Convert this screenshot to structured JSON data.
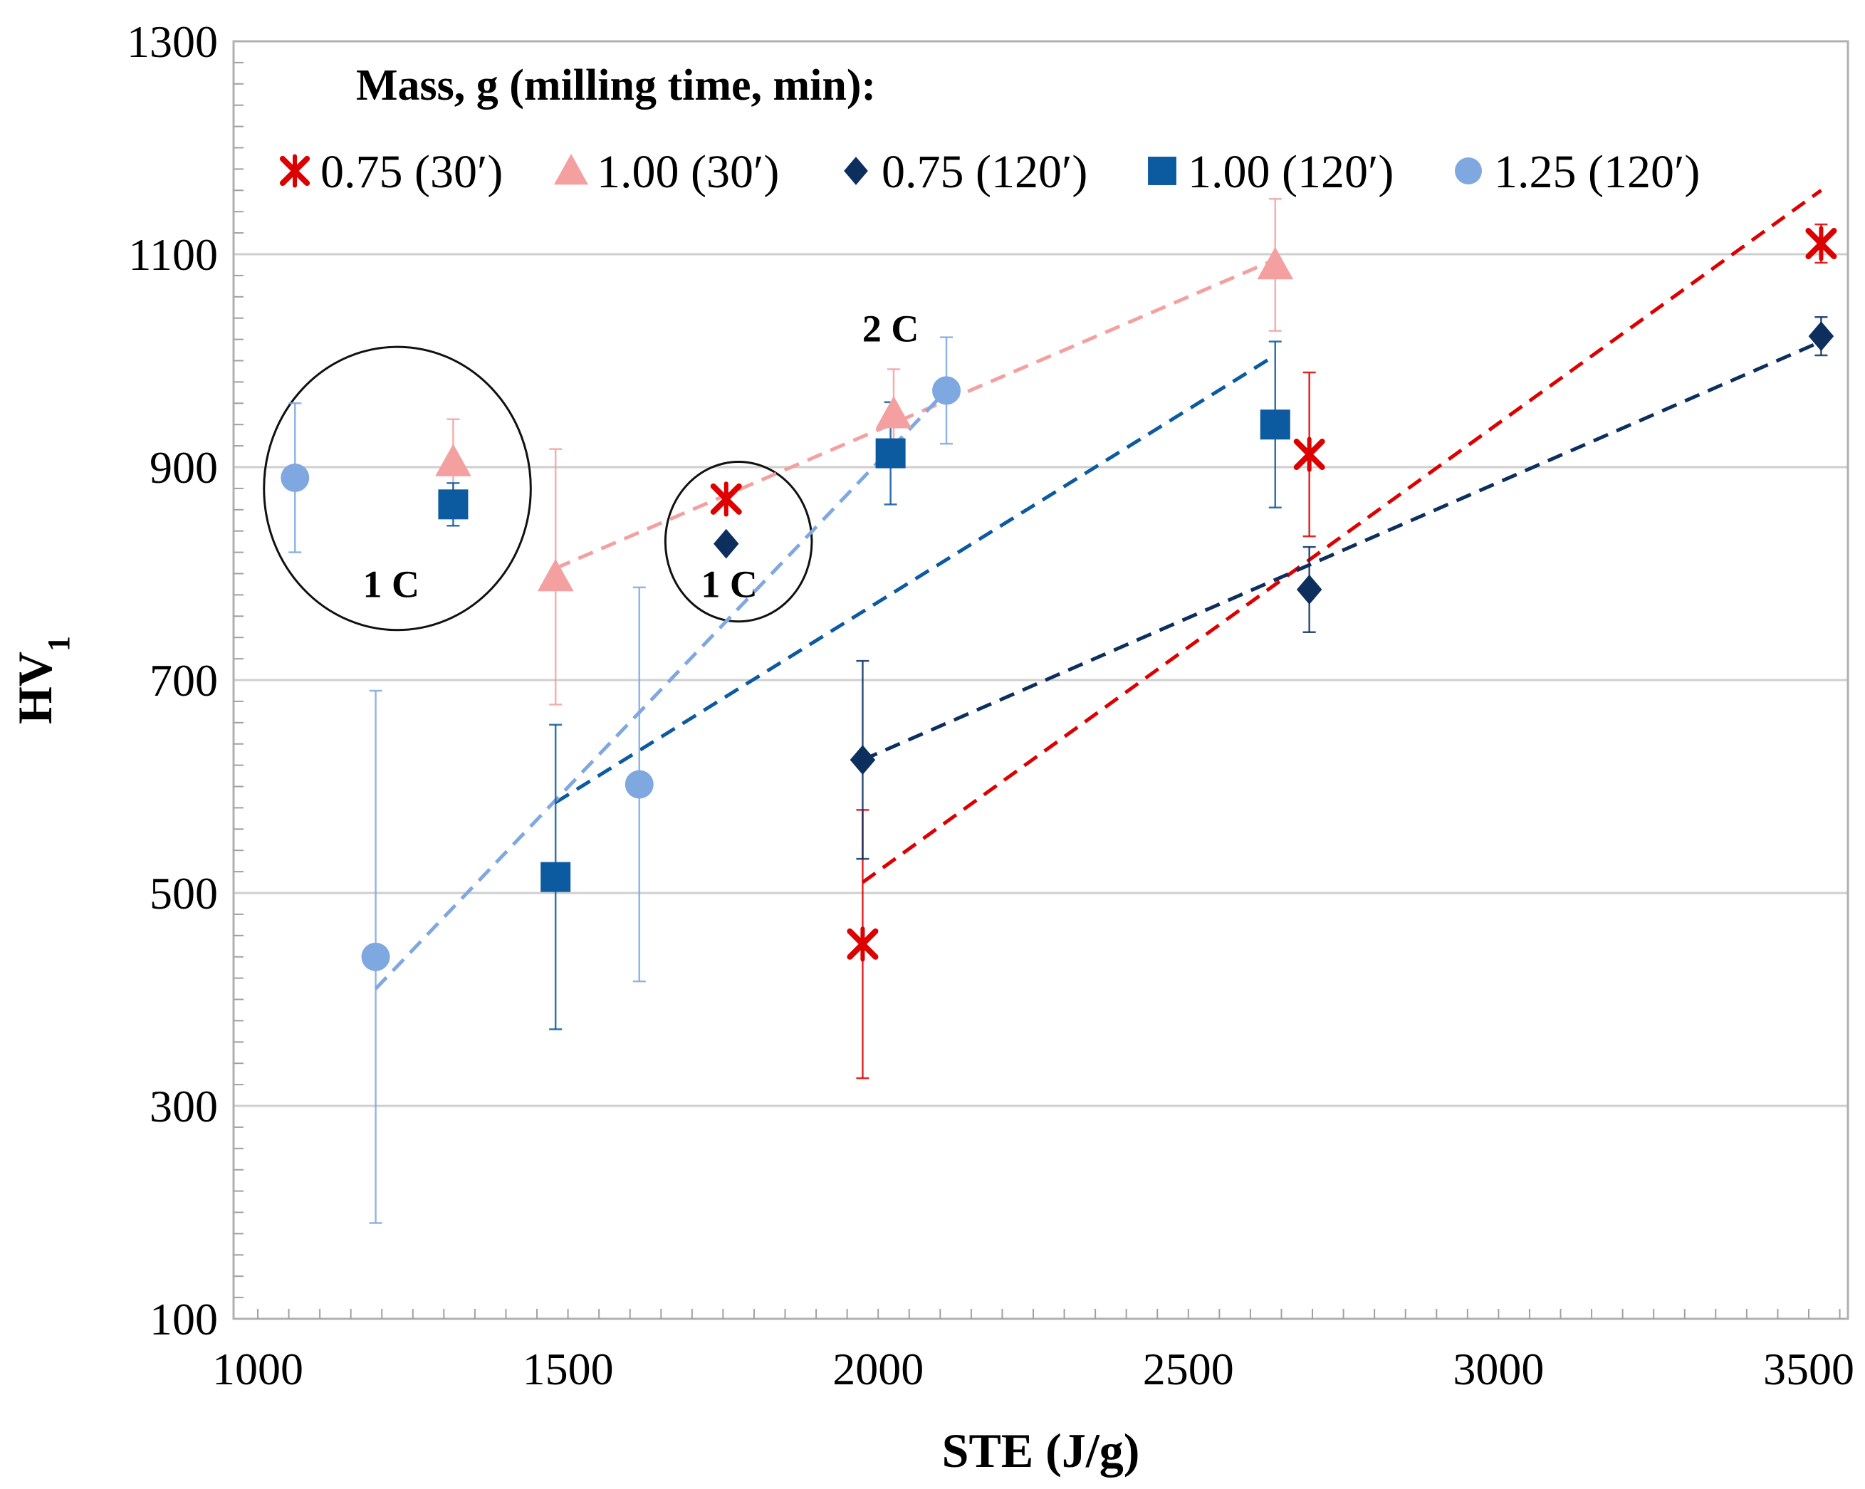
{
  "chart_data": {
    "type": "scatter",
    "xlabel": "STE (J/g)",
    "ylabel": "HV",
    "ylabel_subscript": "1",
    "xlim": [
      1000,
      3600
    ],
    "ylim": [
      100,
      1300
    ],
    "x_ticks": [
      1000,
      1500,
      2000,
      2500,
      3000,
      3500
    ],
    "y_ticks": [
      100,
      300,
      500,
      700,
      900,
      1100,
      1300
    ],
    "grid": "horizontal",
    "legend": {
      "title": "Mass, g (milling time, min):",
      "placement": "top"
    },
    "series": [
      {
        "name": "0.75 (30′)",
        "marker": "asterisk",
        "color": "#dd0000",
        "points": [
          {
            "x": 1755,
            "y": 870,
            "err": 0
          },
          {
            "x": 1975,
            "y": 452,
            "err": 126
          },
          {
            "x": 2695,
            "y": 912,
            "err": 77
          },
          {
            "x": 3520,
            "y": 1110,
            "err": 18
          }
        ],
        "trend": [
          [
            1975,
            510
          ],
          [
            3520,
            1160
          ]
        ]
      },
      {
        "name": "1.00 (30′)",
        "marker": "triangle",
        "color": "#f4a0a0",
        "points": [
          {
            "x": 1315,
            "y": 905,
            "err": 40
          },
          {
            "x": 1480,
            "y": 797,
            "err": 120
          },
          {
            "x": 2025,
            "y": 950,
            "err": 42
          },
          {
            "x": 2640,
            "y": 1090,
            "err": 62
          }
        ],
        "trend": [
          [
            1480,
            805
          ],
          [
            2640,
            1095
          ]
        ]
      },
      {
        "name": "0.75 (120′)",
        "marker": "diamond",
        "color": "#0d2f5e",
        "points": [
          {
            "x": 1755,
            "y": 828,
            "err": 0
          },
          {
            "x": 1975,
            "y": 625,
            "err": 93
          },
          {
            "x": 2695,
            "y": 785,
            "err": 40
          },
          {
            "x": 3520,
            "y": 1023,
            "err": 18
          }
        ],
        "trend": [
          [
            1975,
            625
          ],
          [
            3520,
            1018
          ]
        ]
      },
      {
        "name": "1.00 (120′)",
        "marker": "square",
        "color": "#0c5aa0",
        "points": [
          {
            "x": 1315,
            "y": 865,
            "err": 20
          },
          {
            "x": 1480,
            "y": 515,
            "err": 143
          },
          {
            "x": 2020,
            "y": 913,
            "err": 48
          },
          {
            "x": 2640,
            "y": 940,
            "err": 78
          }
        ],
        "trend": [
          [
            1480,
            585
          ],
          [
            2640,
            1005
          ]
        ]
      },
      {
        "name": "1.25 (120′)",
        "marker": "circle",
        "color": "#7fa8e0",
        "points": [
          {
            "x": 1060,
            "y": 890,
            "err": 70
          },
          {
            "x": 1190,
            "y": 440,
            "err": 250
          },
          {
            "x": 1615,
            "y": 602,
            "err": 185
          },
          {
            "x": 2110,
            "y": 972,
            "err": 50
          }
        ],
        "trend": [
          [
            1190,
            410
          ],
          [
            2110,
            972
          ]
        ]
      }
    ],
    "annotations": [
      {
        "text": "1 C",
        "x": 1215,
        "y": 778,
        "circle": {
          "cx": 1225,
          "cy": 880,
          "rx_units": 215,
          "ry_units": 133
        }
      },
      {
        "text": "1 C",
        "x": 1760,
        "y": 778,
        "circle": {
          "cx": 1775,
          "cy": 830,
          "rx_units": 118,
          "ry_units": 75
        }
      },
      {
        "text": "2 C",
        "x": 2020,
        "y": 1018
      }
    ]
  }
}
